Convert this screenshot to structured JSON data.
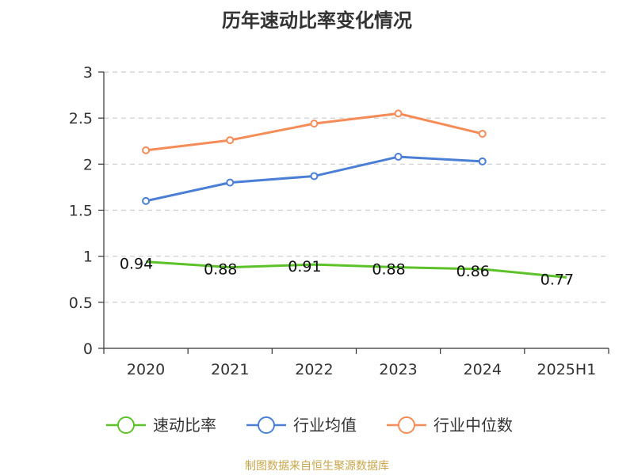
{
  "chart_data": {
    "type": "line",
    "title": "历年速动比率变化情况",
    "categories": [
      "2020",
      "2021",
      "2022",
      "2023",
      "2024",
      "2025H1"
    ],
    "ylim": [
      0,
      3
    ],
    "yticks": [
      "0",
      "0.5",
      "1",
      "1.5",
      "2",
      "2.5",
      "3"
    ],
    "grid": true,
    "legend_position": "bottom",
    "series": [
      {
        "name": "速动比率",
        "color": "#5dc22a",
        "values": [
          0.94,
          0.88,
          0.91,
          0.88,
          0.86,
          0.77
        ],
        "labels": [
          "0.94",
          "0.88",
          "0.91",
          "0.88",
          "0.86",
          "0.77"
        ]
      },
      {
        "name": "行业均值",
        "color": "#4b7fd6",
        "values": [
          1.6,
          1.8,
          1.87,
          2.08,
          2.03,
          null
        ]
      },
      {
        "name": "行业中位数",
        "color": "#f58c57",
        "values": [
          2.15,
          2.26,
          2.44,
          2.55,
          2.33,
          null
        ]
      }
    ]
  },
  "footer": {
    "source": "制图数据来自恒生聚源数据库"
  }
}
